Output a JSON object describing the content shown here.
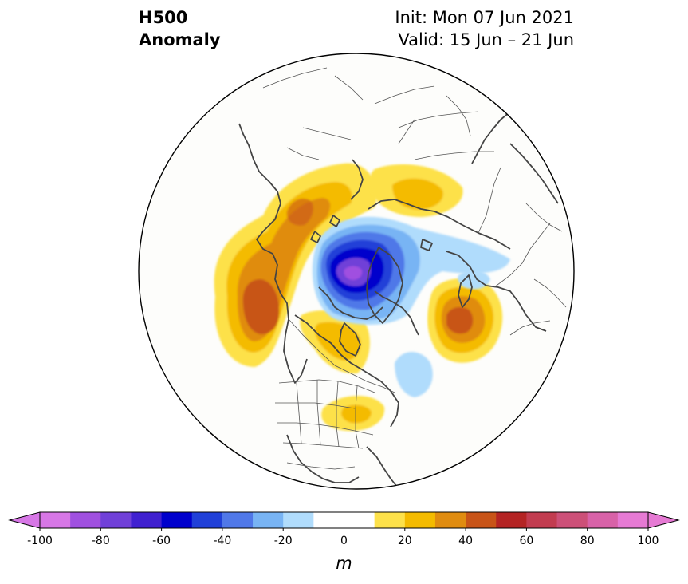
{
  "title": {
    "line1": "H500",
    "line2": "Anomaly"
  },
  "info": {
    "init": "Init: Mon 07 Jun 2021",
    "valid": "Valid: 15 Jun – 21 Jun"
  },
  "colorbar": {
    "min": -100,
    "max": 100,
    "step": 10,
    "extend": "both",
    "ticks": [
      -100,
      -80,
      -60,
      -40,
      -20,
      0,
      20,
      40,
      60,
      80,
      100
    ],
    "tick_labels": [
      "-100",
      "-80",
      "-60",
      "-40",
      "-20",
      "0",
      "20",
      "40",
      "60",
      "80",
      "100"
    ],
    "colors": [
      "#d777e6",
      "#a050e0",
      "#7040d8",
      "#4020d0",
      "#0000cc",
      "#2040d8",
      "#5078e8",
      "#78b4f4",
      "#b0dcfc",
      "#ffffff",
      "#ffffff",
      "#fde14a",
      "#f4bb00",
      "#e08c10",
      "#c85418",
      "#b42424",
      "#c23c50",
      "#cc5078",
      "#d862a8",
      "#e67ad4"
    ],
    "low_extend_color": "#d777e6",
    "high_extend_color": "#e67ad4",
    "units": "m"
  },
  "map": {
    "projection": "north-polar-stereographic",
    "ocean_color": "#fdfdfb",
    "coast_color": "#444444",
    "border_color": "#555555"
  }
}
